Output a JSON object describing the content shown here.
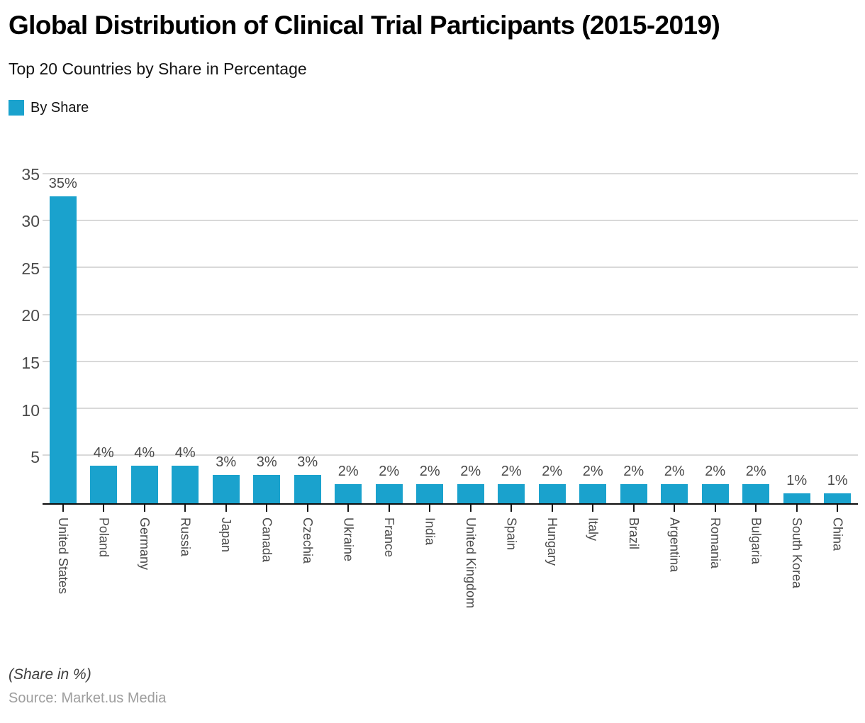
{
  "header": {
    "title": "Global Distribution of Clinical Trial Participants (2015-2019)",
    "subtitle": "Top 20 Countries by Share in Percentage"
  },
  "legend": {
    "label": "By Share",
    "swatch_color": "#1AA2CD"
  },
  "chart_data": {
    "type": "bar",
    "title": "Global Distribution of Clinical Trial Participants (2015-2019)",
    "subtitle": "Top 20 Countries by Share in Percentage",
    "categories": [
      "United States",
      "Poland",
      "Germany",
      "Russia",
      "Japan",
      "Canada",
      "Czechia",
      "Ukraine",
      "France",
      "India",
      "United Kingdom",
      "Spain",
      "Hungary",
      "Italy",
      "Brazil",
      "Argentina",
      "Romania",
      "Bulgaria",
      "South Korea",
      "China"
    ],
    "values": [
      35,
      4,
      4,
      4,
      3,
      3,
      3,
      2,
      2,
      2,
      2,
      2,
      2,
      2,
      2,
      2,
      2,
      2,
      1,
      1
    ],
    "value_label_suffix": "%",
    "xlabel": "",
    "ylabel": "",
    "ylim": [
      0,
      35
    ],
    "yticks": [
      5,
      10,
      15,
      20,
      25,
      30,
      35
    ],
    "grid": "horizontal",
    "gridline_color": "#d9d9d9",
    "bar_color": "#1AA2CD",
    "legend_position": "top-left",
    "legend_entries": [
      "By Share"
    ]
  },
  "footer": {
    "note": "(Share in %)",
    "source": "Source: Market.us Media"
  }
}
